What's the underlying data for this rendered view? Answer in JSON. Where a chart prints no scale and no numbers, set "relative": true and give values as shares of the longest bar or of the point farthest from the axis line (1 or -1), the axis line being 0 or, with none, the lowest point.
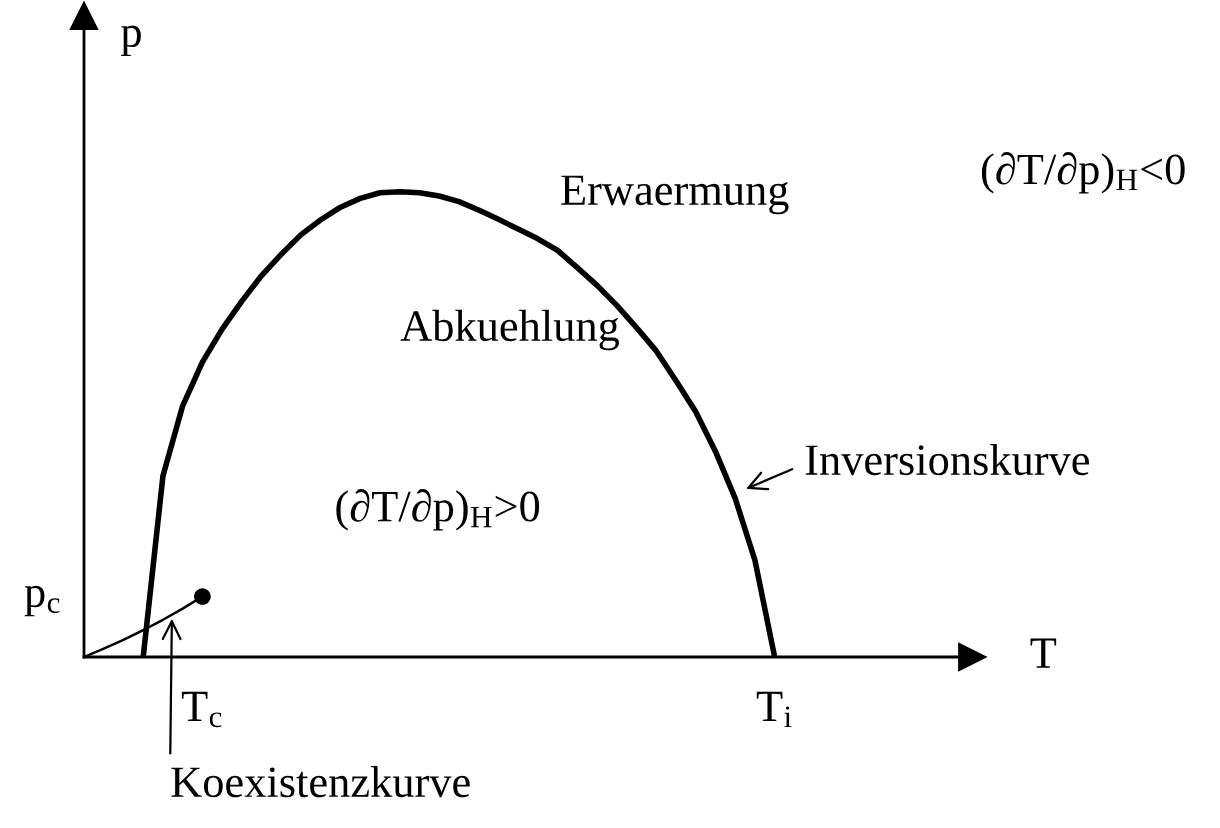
{
  "chart_data": {
    "type": "line",
    "relative": true,
    "xlabel": "T",
    "ylabel": "p",
    "categories": [
      null,
      null,
      null,
      null,
      null,
      null,
      "T$_{c}$",
      null,
      null,
      null,
      null,
      null,
      null,
      null,
      null,
      null,
      null,
      null,
      null,
      null,
      null,
      null,
      null,
      null,
      null,
      null,
      null,
      null,
      null,
      null,
      null,
      null,
      null,
      null,
      null,
      "T$_{i}$",
      null,
      null,
      null,
      null,
      null,
      null,
      null,
      null,
      null,
      null
    ],
    "series": [
      {
        "color": "#000000",
        "line_style": "solid",
        "values": [
          null,
          null,
          null,
          0,
          0.389,
          0.54,
          0.634,
          0.705,
          0.765,
          0.82,
          0.866,
          0.908,
          0.94,
          0.967,
          0.986,
          0.998,
          1.0,
          0.998,
          0.991,
          0.979,
          0.961,
          0.941,
          0.92,
          0.899,
          0.874,
          0.837,
          0.799,
          0.756,
          0.708,
          0.658,
          0.594,
          0.527,
          0.442,
          0.341,
          0.208,
          0,
          null,
          null,
          null,
          null,
          null,
          null,
          null,
          null,
          null,
          null
        ]
      },
      {
        "color": "#000000",
        "line_style": "solid",
        "values": [
          0,
          0.018,
          0.037,
          0.058,
          0.08,
          0.104,
          0.13,
          null,
          null,
          null,
          null,
          null,
          null,
          null,
          null,
          null,
          null,
          null,
          null,
          null,
          null,
          null,
          null,
          null,
          null,
          null,
          null,
          null,
          null,
          null,
          null,
          null,
          null,
          null,
          null,
          null,
          null,
          null,
          null,
          null,
          null,
          null,
          null,
          null,
          null,
          null
        ]
      },
      {
        "type": "scatter",
        "color": "#000000",
        "marker": "circle",
        "values": [
          null,
          null,
          null,
          null,
          null,
          null,
          0.13,
          null,
          null,
          null,
          null,
          null,
          null,
          null,
          null,
          null,
          null,
          null,
          null,
          null,
          null,
          null,
          null,
          null,
          null,
          null,
          null,
          null,
          null,
          null,
          null,
          null,
          null,
          null,
          null,
          null,
          null,
          null,
          null,
          null,
          null,
          null,
          null,
          null,
          null,
          null
        ]
      }
    ],
    "annotations": [
      "Erwaermung",
      "Abkuehlung",
      "(∂T/∂p)$_{H}$<0",
      "(∂T/∂p)$_{H}$>0",
      "Inversionskurve",
      "Koexistenzkurve",
      "p$_{c}$"
    ]
  }
}
